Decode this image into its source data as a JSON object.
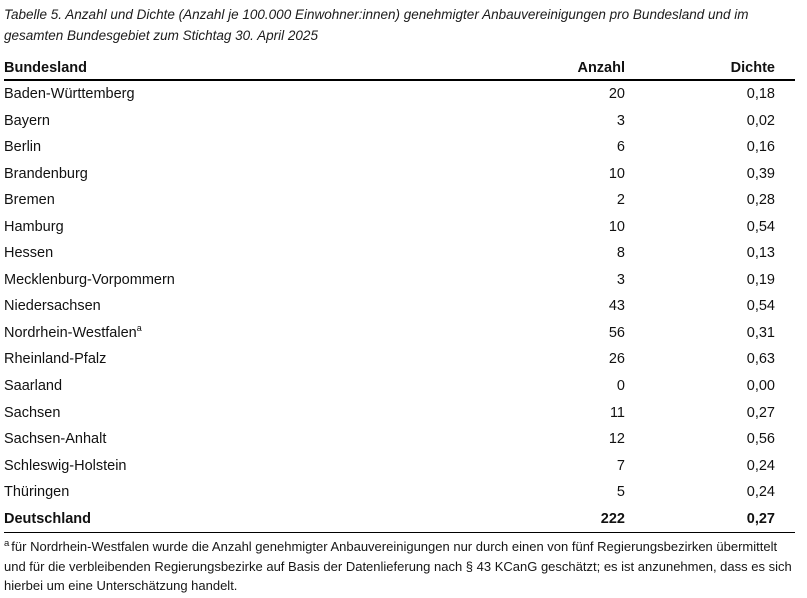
{
  "title": "Tabelle 5. Anzahl und Dichte (Anzahl je 100.000 Einwohner:innen) genehmigter Anbauvereinigungen pro Bundesland und im gesamten Bundesgebiet zum Stichtag 30. April 2025",
  "table": {
    "columns": [
      "Bundesland",
      "Anzahl",
      "Dichte"
    ],
    "rows": [
      {
        "bundesland": "Baden-Württemberg",
        "anzahl": "20",
        "dichte": "0,18"
      },
      {
        "bundesland": "Bayern",
        "anzahl": "3",
        "dichte": "0,02"
      },
      {
        "bundesland": "Berlin",
        "anzahl": "6",
        "dichte": "0,16"
      },
      {
        "bundesland": "Brandenburg",
        "anzahl": "10",
        "dichte": "0,39"
      },
      {
        "bundesland": "Bremen",
        "anzahl": "2",
        "dichte": "0,28"
      },
      {
        "bundesland": "Hamburg",
        "anzahl": "10",
        "dichte": "0,54"
      },
      {
        "bundesland": "Hessen",
        "anzahl": "8",
        "dichte": "0,13"
      },
      {
        "bundesland": "Mecklenburg-Vorpommern",
        "anzahl": "3",
        "dichte": "0,19"
      },
      {
        "bundesland": "Niedersachsen",
        "anzahl": "43",
        "dichte": "0,54"
      },
      {
        "bundesland": "Nordrhein-Westfalen",
        "footnote_marker": "a",
        "anzahl": "56",
        "dichte": "0,31"
      },
      {
        "bundesland": "Rheinland-Pfalz",
        "anzahl": "26",
        "dichte": "0,63"
      },
      {
        "bundesland": "Saarland",
        "anzahl": "0",
        "dichte": "0,00"
      },
      {
        "bundesland": "Sachsen",
        "anzahl": "11",
        "dichte": "0,27"
      },
      {
        "bundesland": "Sachsen-Anhalt",
        "anzahl": "12",
        "dichte": "0,56"
      },
      {
        "bundesland": "Schleswig-Holstein",
        "anzahl": "7",
        "dichte": "0,24"
      },
      {
        "bundesland": "Thüringen",
        "anzahl": "5",
        "dichte": "0,24"
      }
    ],
    "total_row": {
      "bundesland": "Deutschland",
      "anzahl": "222",
      "dichte": "0,27"
    }
  },
  "footnote": {
    "marker": "a",
    "text": "für Nordrhein-Westfalen wurde die Anzahl genehmigter Anbauvereinigungen nur durch einen von fünf Regierungsbezirken übermittelt und für die verbleibenden Regierungsbezirke auf Basis der Datenlieferung nach § 43 KCanG geschätzt; es ist anzunehmen, dass es sich hierbei um eine Unterschätzung handelt."
  },
  "colors": {
    "text": "#111111",
    "background": "#ffffff",
    "border": "#000000"
  }
}
